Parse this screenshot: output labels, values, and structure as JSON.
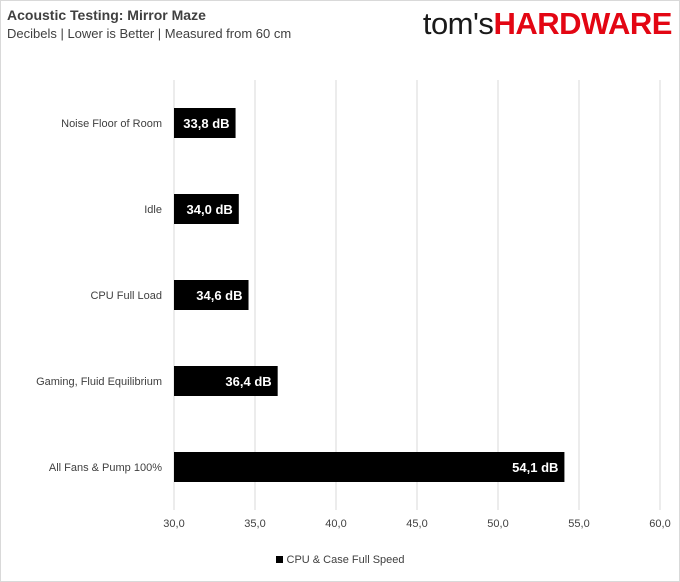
{
  "header": {
    "title": "Acoustic Testing: Mirror Maze",
    "subtitle": "Decibels | Lower is Better | Measured from 60 cm",
    "logo_part1": "tom's",
    "logo_part2": "HARDWARE"
  },
  "chart_data": {
    "type": "bar",
    "orientation": "horizontal",
    "categories": [
      "Noise Floor of Room",
      "Idle",
      "CPU Full Load",
      "Gaming, Fluid Equilibrium",
      "All Fans & Pump 100%"
    ],
    "series": [
      {
        "name": "CPU & Case Full Speed",
        "values": [
          33.8,
          34.0,
          34.6,
          36.4,
          54.1
        ],
        "color": "#000000"
      }
    ],
    "data_labels": [
      "33,8 dB",
      "34,0 dB",
      "34,6 dB",
      "36,4 dB",
      "54,1 dB"
    ],
    "x_ticks": [
      "30,0",
      "35,0",
      "40,0",
      "45,0",
      "50,0",
      "55,0",
      "60,0"
    ],
    "xlim": [
      30,
      60
    ],
    "grid": true,
    "legend_position": "bottom"
  }
}
